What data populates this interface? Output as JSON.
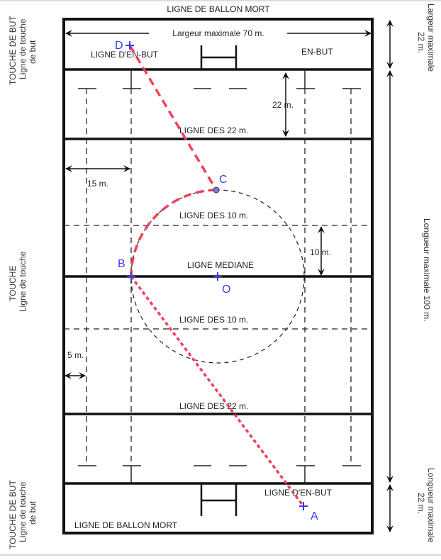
{
  "labels": {
    "top_dead_ball": "LIGNE DE BALLON MORT",
    "max_width": "Largeur maximale 70 m.",
    "goal_line_top": "LIGNE D'EN-BUT",
    "in_goal": "EN-BUT",
    "dim_22": "22 m.",
    "line_22_top": "LIGNE DES 22 m.",
    "dim_15": "15 m.",
    "line_10_top": "LIGNE DES 10 m.",
    "dim_10": "10 m.",
    "halfway": "LIGNE MEDIANE",
    "line_10_bottom": "LIGNE DES 10 m.",
    "dim_5": "5 m.",
    "line_22_bottom": "LIGNE DES 22 m.",
    "goal_line_bottom": "LIGNE D'EN-BUT",
    "bottom_dead_ball": "LIGNE DE BALLON MORT"
  },
  "side_labels": {
    "left_top_1": "TOUCHE DE BUT",
    "left_top_2": "Ligne de touche",
    "left_top_3": "de but",
    "left_mid_1": "TOUCHE",
    "left_mid_2": "Ligne de touche",
    "left_bot_1": "TOUCHE DE BUT",
    "left_bot_2": "Ligne de touche",
    "left_bot_3": "de but",
    "right_top_1": "Largeur maximale",
    "right_top_2": "22 m.",
    "right_mid": "Longueur maximale 100 m.",
    "right_bot_1": "Longueur maximale",
    "right_bot_2": "22 m."
  },
  "points": {
    "A": "A",
    "B": "B",
    "C": "C",
    "D": "D",
    "O": "O"
  },
  "colors": {
    "construction": "#f0405a",
    "points": "#3a3af0"
  }
}
